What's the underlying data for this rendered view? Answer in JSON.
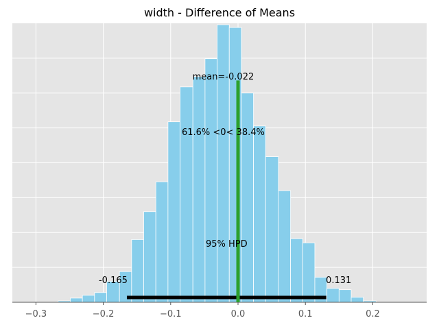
{
  "chart_data": {
    "type": "bar",
    "title": "width - Difference of Means",
    "xlabel": "",
    "ylabel": "",
    "xlim": [
      -0.335,
      0.28
    ],
    "ylim": [
      0,
      1.0
    ],
    "grid": true,
    "background_color": "#e5e5e5",
    "bar_color": "#87ceeb",
    "bar_edge_color": "#ffffff",
    "hpd_color": "#000000",
    "mean_color": "#2ca02c",
    "x_ticks": [
      -0.3,
      -0.2,
      -0.1,
      0.0,
      0.1,
      0.2
    ],
    "x_tick_labels": [
      "−0.3",
      "−0.2",
      "−0.1",
      "0.0",
      "0.1",
      "0.2"
    ],
    "y_gridlines": [
      0.125,
      0.25,
      0.375,
      0.5,
      0.625,
      0.75,
      0.875
    ],
    "histogram": {
      "bin_edges": [
        -0.285,
        -0.267,
        -0.249,
        -0.231,
        -0.213,
        -0.195,
        -0.176,
        -0.158,
        -0.14,
        -0.122,
        -0.104,
        -0.086,
        -0.067,
        -0.049,
        -0.031,
        -0.013,
        0.005,
        0.023,
        0.041,
        0.06,
        0.078,
        0.096,
        0.114,
        0.132,
        0.15,
        0.168,
        0.186,
        0.205,
        0.223,
        0.241
      ],
      "heights": [
        0.0,
        0.005,
        0.015,
        0.025,
        0.035,
        0.075,
        0.11,
        0.225,
        0.325,
        0.432,
        0.647,
        0.772,
        0.809,
        0.873,
        0.995,
        0.985,
        0.75,
        0.632,
        0.522,
        0.4,
        0.228,
        0.213,
        0.09,
        0.05,
        0.045,
        0.018,
        0.005,
        0.0,
        0.0
      ]
    },
    "mean": {
      "value": -0.022,
      "label": "mean=-0.022",
      "line_top": 0.795
    },
    "reference": {
      "value": 0.0,
      "label": "61.6% <0< 38.4%"
    },
    "hpd": {
      "lower": -0.165,
      "upper": 0.131,
      "label": "95% HPD",
      "lower_label": "-0.165",
      "upper_label": "0.131"
    }
  }
}
